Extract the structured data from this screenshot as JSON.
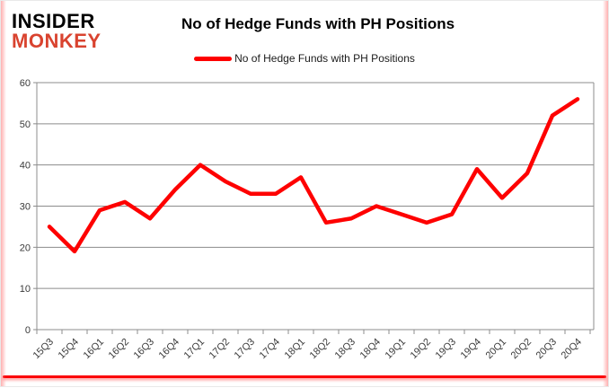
{
  "brand": {
    "line1": "INSIDER",
    "line2": "MONKEY",
    "line2_color": "#d9432f"
  },
  "header": {
    "title": "No of Hedge Funds with PH Positions"
  },
  "legend": {
    "label": "No of Hedge Funds with PH Positions",
    "swatch_color": "#fe0000"
  },
  "chart_data": {
    "type": "line",
    "title": "No of Hedge Funds with PH Positions",
    "categories": [
      "15Q3",
      "15Q4",
      "16Q1",
      "16Q2",
      "16Q3",
      "16Q4",
      "17Q1",
      "17Q2",
      "17Q3",
      "17Q4",
      "18Q1",
      "18Q2",
      "18Q3",
      "18Q4",
      "19Q1",
      "19Q2",
      "19Q3",
      "19Q4",
      "20Q1",
      "20Q2",
      "20Q3",
      "20Q4"
    ],
    "series": [
      {
        "name": "No of Hedge Funds with PH Positions",
        "color": "#fe0000",
        "values": [
          25,
          19,
          29,
          31,
          27,
          34,
          40,
          36,
          33,
          33,
          37,
          26,
          27,
          30,
          28,
          26,
          28,
          39,
          32,
          38,
          52,
          56
        ]
      }
    ],
    "xlabel": "",
    "ylabel": "",
    "ylim": [
      0,
      60
    ],
    "yticks": [
      0,
      10,
      20,
      30,
      40,
      50,
      60
    ],
    "grid": true,
    "legend_position": "top-center",
    "colors": {
      "grid": "#8c8c8c",
      "axis": "#8c8c8c",
      "tick_label": "#3a3a3a",
      "accent_bar": "#fb0207"
    }
  }
}
